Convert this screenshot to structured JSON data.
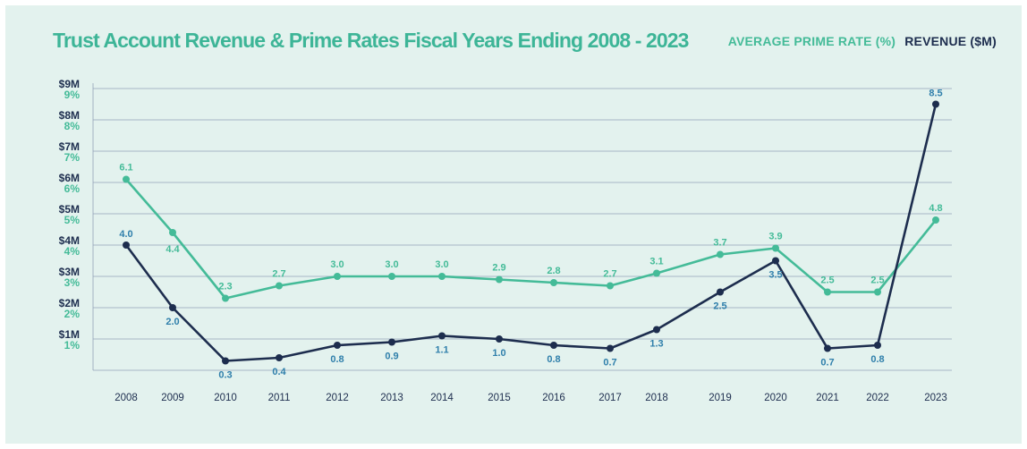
{
  "chart_data": {
    "type": "line",
    "title": "Trust Account Revenue & Prime Rates Fiscal Years Ending 2008 - 2023",
    "categories": [
      "2008",
      "2009",
      "2010",
      "2011",
      "2012",
      "2013",
      "2014",
      "2015",
      "2016",
      "2017",
      "2018",
      "2019",
      "2020",
      "2021",
      "2022",
      "2023"
    ],
    "series": [
      {
        "name": "AVERAGE PRIME RATE (%)",
        "unit": "%",
        "color": "#44bb98",
        "values": [
          6.1,
          4.4,
          2.3,
          2.7,
          3.0,
          3.0,
          3.0,
          2.9,
          2.8,
          2.7,
          3.1,
          3.7,
          3.9,
          2.5,
          2.5,
          4.8
        ],
        "labels": [
          "6.1",
          "4.4",
          "2.3",
          "2.7",
          "3.0",
          "3.0",
          "3.0",
          "2.9",
          "2.8",
          "2.7",
          "3.1",
          "3.7",
          "3.9",
          "2.5",
          "2.5",
          "4.8"
        ]
      },
      {
        "name": "REVENUE ($M)",
        "unit": "$M",
        "color": "#1d2d4e",
        "label_color": "#2f7fab",
        "values": [
          4.0,
          2.0,
          0.3,
          0.4,
          0.8,
          0.9,
          1.1,
          1.0,
          0.8,
          0.7,
          1.3,
          2.5,
          3.5,
          0.7,
          0.8,
          8.5
        ],
        "labels": [
          "4.0",
          "2.0",
          "0.3",
          "0.4",
          "0.8",
          "0.9",
          "1.1",
          "1.0",
          "0.8",
          "0.7",
          "1.3",
          "2.5",
          "3.5",
          "0.7",
          "0.8",
          "8.5"
        ]
      }
    ],
    "y_left_revenue_ticks": [
      "$1M",
      "$2M",
      "$3M",
      "$4M",
      "$5M",
      "$6M",
      "$7M",
      "$8M",
      "$9M"
    ],
    "y_left_rate_ticks": [
      "1%",
      "2%",
      "3%",
      "4%",
      "5%",
      "6%",
      "7%",
      "8%",
      "9%"
    ],
    "ylim": [
      0,
      9
    ],
    "grid": true,
    "legend_position": "top-right"
  },
  "colors": {
    "background": "#e3f2ee",
    "title": "#3db597",
    "grid": "#93a2b8",
    "axis_text": "#1d2d4e"
  }
}
